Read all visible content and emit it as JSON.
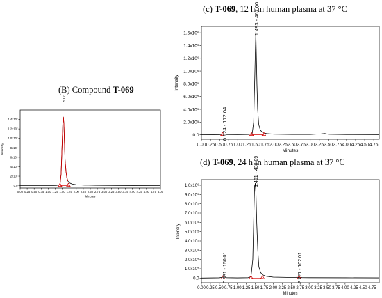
{
  "chart_data": [
    {
      "id": "B",
      "type": "line",
      "title_prefix": "(B) Compound ",
      "title_bold": "T-069",
      "title_suffix": "",
      "xlabel": "Minutes",
      "ylabel": "Intensity",
      "xlim": [
        0.0,
        5.0
      ],
      "ylim": [
        -0.05,
        1.6
      ],
      "x_ticks": [
        "0.00",
        "0.25",
        "0.50",
        "0.75",
        "1.00",
        "1.25",
        "1.50",
        "1.75",
        "2.00",
        "2.25",
        "2.50",
        "2.75",
        "3.00",
        "3.25",
        "3.50",
        "3.75",
        "4.00",
        "4.25",
        "4.50",
        "4.75",
        "5.00"
      ],
      "y_ticks": [
        {
          "v": 0.0,
          "label": "0.0"
        },
        {
          "v": 0.2,
          "label": "2x10⁶"
        },
        {
          "v": 0.4,
          "label": "4x10⁶"
        },
        {
          "v": 0.6,
          "label": "6x10⁶"
        },
        {
          "v": 0.8,
          "label": "8x10⁶"
        },
        {
          "v": 1.0,
          "label": "1.0x10⁷"
        },
        {
          "v": 1.2,
          "label": "1.2x10⁷"
        },
        {
          "v": 1.4,
          "label": "1.4x10⁷"
        }
      ],
      "y_scale_note": "intensity ×10⁷",
      "series": [
        {
          "color": "#000000",
          "x": [
            0.0,
            0.5,
            1.0,
            1.3,
            1.42,
            1.46,
            1.5,
            1.52,
            1.54,
            1.56,
            1.58,
            1.6,
            1.63,
            1.66,
            1.7,
            1.75,
            1.85,
            2.0,
            2.3,
            2.7,
            3.5,
            5.0
          ],
          "y": [
            0.0,
            0.0,
            0.0,
            0.005,
            0.02,
            0.25,
            0.95,
            1.3,
            1.45,
            1.3,
            0.9,
            0.55,
            0.32,
            0.18,
            0.1,
            0.06,
            0.035,
            0.02,
            0.012,
            0.008,
            0.004,
            0.0
          ]
        },
        {
          "color": "#d00000",
          "x": [
            1.42,
            1.46,
            1.5,
            1.52,
            1.54,
            1.56,
            1.58,
            1.6,
            1.63,
            1.66,
            1.7
          ],
          "y": [
            0.02,
            0.25,
            0.95,
            1.3,
            1.45,
            1.3,
            0.9,
            0.55,
            0.32,
            0.18,
            0.1
          ]
        }
      ],
      "peak_labels": [
        {
          "x": 1.54,
          "y": 1.45,
          "text": "1.512",
          "color": "#d00000"
        }
      ],
      "markers": [
        {
          "x": 1.42,
          "color": "#d00000"
        },
        {
          "x": 1.72,
          "color": "#d00000"
        }
      ],
      "baselines": [
        {
          "x1": 1.42,
          "x2": 1.72,
          "color": "#d00000"
        }
      ]
    },
    {
      "id": "c",
      "type": "line",
      "title_prefix": "(c) ",
      "title_bold": "T-069",
      "title_suffix": ", 12 h in human plasma at 37 °C",
      "xlabel": "Minutes",
      "ylabel": "Intensity",
      "xlim": [
        0.0,
        4.9
      ],
      "ylim": [
        -0.07,
        1.7
      ],
      "x_ticks": [
        "0.00",
        "0.25",
        "0.50",
        "0.75",
        "1.00",
        "1.25",
        "1.50",
        "1.75",
        "2.00",
        "2.25",
        "2.50",
        "2.75",
        "3.00",
        "3.25",
        "3.50",
        "3.75",
        "4.00",
        "4.25",
        "4.50",
        "4.75"
      ],
      "y_ticks": [
        {
          "v": 0.0,
          "label": "0.0"
        },
        {
          "v": 0.2,
          "label": "2.0x10⁵"
        },
        {
          "v": 0.4,
          "label": "4.0x10⁵"
        },
        {
          "v": 0.6,
          "label": "6.0x10⁵"
        },
        {
          "v": 0.8,
          "label": "8.0x10⁵"
        },
        {
          "v": 1.0,
          "label": "1.0x10⁶"
        },
        {
          "v": 1.2,
          "label": "1.2x10⁶"
        },
        {
          "v": 1.4,
          "label": "1.4x10⁶"
        },
        {
          "v": 1.6,
          "label": "1.6x10⁶"
        }
      ],
      "y_scale_note": "intensity ×10⁶",
      "series": [
        {
          "color": "#000000",
          "x": [
            0.0,
            0.5,
            0.62,
            0.7,
            1.0,
            1.3,
            1.4,
            1.44,
            1.47,
            1.49,
            1.5,
            1.51,
            1.53,
            1.55,
            1.58,
            1.62,
            1.66,
            1.7,
            1.8,
            2.0,
            2.5,
            3.0,
            3.3,
            3.4,
            3.5,
            4.0,
            4.9
          ],
          "y": [
            0.0,
            0.003,
            0.012,
            0.004,
            0.002,
            0.005,
            0.02,
            0.2,
            0.9,
            1.4,
            1.62,
            1.35,
            0.8,
            0.4,
            0.16,
            0.08,
            0.05,
            0.03,
            0.018,
            0.01,
            0.006,
            0.006,
            0.015,
            0.02,
            0.008,
            0.004,
            0.002
          ]
        }
      ],
      "peak_labels": [
        {
          "x": 1.5,
          "y": 1.62,
          "text": "1.493 - 467.00",
          "color": "#000000"
        },
        {
          "x": 0.62,
          "y": 0.012,
          "text": "0.624 - 172.04",
          "color": "#000000"
        }
      ],
      "markers": [
        {
          "x": 0.58,
          "color": "#d00000"
        },
        {
          "x": 1.38,
          "color": "#d00000"
        },
        {
          "x": 1.72,
          "color": "#d00000"
        }
      ],
      "baselines": [
        {
          "x1": 1.38,
          "x2": 1.72,
          "color": "#d00000"
        }
      ]
    },
    {
      "id": "d",
      "type": "line",
      "title_prefix": "(d) ",
      "title_bold": "T-069",
      "title_suffix": ", 24 h in human plasma at 37 °C",
      "xlabel": "Minutes",
      "ylabel": "Intensity",
      "xlim": [
        0.0,
        4.95
      ],
      "ylim": [
        -0.05,
        1.06
      ],
      "x_ticks": [
        "0.00",
        "0.25",
        "0.50",
        "0.75",
        "1.00",
        "1.25",
        "1.50",
        "1.75",
        "2.00",
        "2.25",
        "2.50",
        "2.75",
        "3.00",
        "3.25",
        "3.50",
        "3.75",
        "4.00",
        "4.25",
        "4.50",
        "4.75"
      ],
      "y_ticks": [
        {
          "v": 0.0,
          "label": "0.0"
        },
        {
          "v": 0.1,
          "label": "1.0x10⁵"
        },
        {
          "v": 0.2,
          "label": "2.0x10⁵"
        },
        {
          "v": 0.3,
          "label": "3.0x10⁵"
        },
        {
          "v": 0.4,
          "label": "4.0x10⁵"
        },
        {
          "v": 0.5,
          "label": "5.0x10⁵"
        },
        {
          "v": 0.6,
          "label": "6.0x10⁵"
        },
        {
          "v": 0.7,
          "label": "7.0x10⁵"
        },
        {
          "v": 0.8,
          "label": "8.0x10⁵"
        },
        {
          "v": 0.9,
          "label": "9.0x10⁵"
        },
        {
          "v": 1.0,
          "label": "1.0x10⁶"
        }
      ],
      "y_scale_note": "intensity ×10⁶",
      "series": [
        {
          "color": "#000000",
          "x": [
            0.0,
            0.5,
            0.63,
            0.7,
            1.0,
            1.3,
            1.38,
            1.43,
            1.46,
            1.48,
            1.5,
            1.52,
            1.54,
            1.57,
            1.6,
            1.65,
            1.7,
            1.8,
            2.0,
            2.5,
            2.72,
            2.8,
            3.0,
            4.0,
            4.95
          ],
          "y": [
            0.0,
            0.003,
            0.012,
            0.004,
            0.002,
            0.004,
            0.015,
            0.2,
            0.7,
            0.98,
            1.02,
            0.9,
            0.6,
            0.3,
            0.12,
            0.06,
            0.035,
            0.02,
            0.01,
            0.006,
            0.008,
            0.005,
            0.004,
            0.003,
            0.002
          ]
        }
      ],
      "peak_labels": [
        {
          "x": 1.5,
          "y": 1.02,
          "text": "1.491 - 430.09",
          "color": "#000000"
        },
        {
          "x": 0.63,
          "y": 0.012,
          "text": "0.631 - 150.01",
          "color": "#000000"
        },
        {
          "x": 2.72,
          "y": 0.008,
          "text": "2.721 - 102.01",
          "color": "#000000"
        }
      ],
      "markers": [
        {
          "x": 0.6,
          "color": "#d00000"
        },
        {
          "x": 1.38,
          "color": "#d00000"
        },
        {
          "x": 1.7,
          "color": "#d00000"
        },
        {
          "x": 2.72,
          "color": "#d00000"
        }
      ],
      "baselines": [
        {
          "x1": 1.38,
          "x2": 1.7,
          "color": "#d00000"
        }
      ]
    }
  ]
}
